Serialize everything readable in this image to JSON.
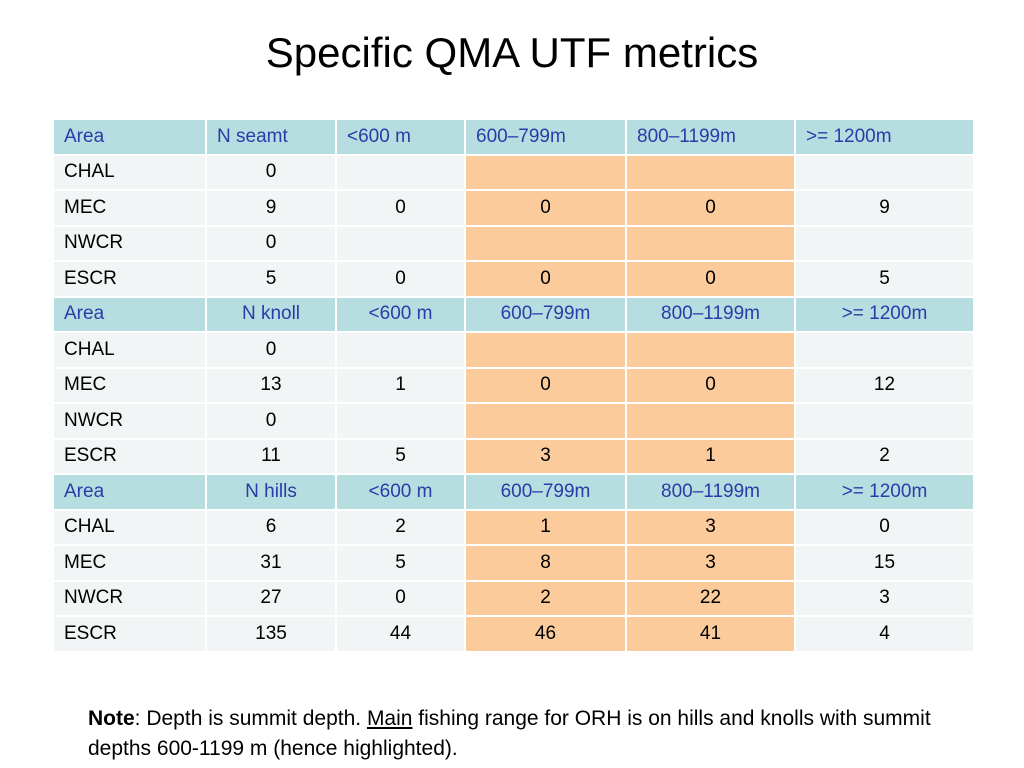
{
  "title": "Specific QMA UTF metrics",
  "colors": {
    "header_bg": "#b6dde0",
    "header_text": "#2b3ca8",
    "row_bg": "#f1f5f5",
    "highlight_bg": "#fbcb9c"
  },
  "sections": [
    {
      "header": [
        "Area",
        "N seamt",
        "<600 m",
        "600–799m",
        "800–1199m",
        ">= 1200m"
      ],
      "rows": [
        [
          "CHAL",
          "0",
          "",
          "",
          "",
          ""
        ],
        [
          "MEC",
          "9",
          "0",
          "0",
          "0",
          "9"
        ],
        [
          "NWCR",
          "0",
          "",
          "",
          "",
          ""
        ],
        [
          "ESCR",
          "5",
          "0",
          "0",
          "0",
          "5"
        ]
      ]
    },
    {
      "header": [
        "Area",
        "N knoll",
        "<600 m",
        "600–799m",
        "800–1199m",
        ">= 1200m"
      ],
      "rows": [
        [
          "CHAL",
          "0",
          "",
          "",
          "",
          ""
        ],
        [
          "MEC",
          "13",
          "1",
          "0",
          "0",
          "12"
        ],
        [
          "NWCR",
          "0",
          "",
          "",
          "",
          ""
        ],
        [
          "ESCR",
          "11",
          "5",
          "3",
          "1",
          "2"
        ]
      ]
    },
    {
      "header": [
        "Area",
        "N hills",
        "<600 m",
        "600–799m",
        "800–1199m",
        ">= 1200m"
      ],
      "rows": [
        [
          "CHAL",
          "6",
          "2",
          "1",
          "3",
          "0"
        ],
        [
          "MEC",
          "31",
          "5",
          "8",
          "3",
          "15"
        ],
        [
          "NWCR",
          "27",
          "0",
          "2",
          "22",
          "3"
        ],
        [
          "ESCR",
          "135",
          "44",
          "46",
          "41",
          "4"
        ]
      ]
    }
  ],
  "highlight_columns": [
    3,
    4
  ],
  "note": {
    "label": "Note",
    "text1": ": Depth is summit depth. ",
    "underlined": "Main",
    "text2": " fishing range for ORH is on hills and knolls with summit depths 600-1199 m (hence highlighted)."
  }
}
